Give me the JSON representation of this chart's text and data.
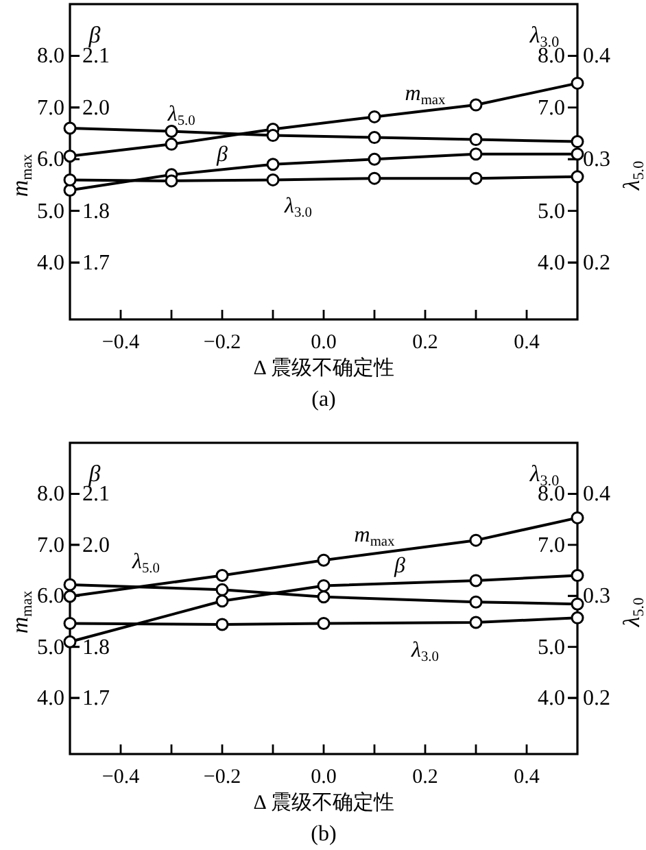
{
  "chart_data": [
    {
      "type": "line",
      "title": "(a)",
      "xlabel": "Δ 震级不确定性",
      "ylabel": "m$_{max}$",
      "y2label": "β",
      "y3label": "λ$_{5.0}$",
      "annotations": [
        "λ$_{3.0}$"
      ],
      "marker": "circle",
      "xlim": [
        -0.5,
        0.5
      ],
      "xticks": [
        {
          "value": -0.4,
          "label": "−0.4"
        },
        {
          "value": -0.3,
          "label": null
        },
        {
          "value": -0.2,
          "label": "−0.2"
        },
        {
          "value": -0.1,
          "label": null
        },
        {
          "value": 0,
          "label": "0.0"
        },
        {
          "value": 0.1,
          "label": null
        },
        {
          "value": 0.2,
          "label": "0.2"
        },
        {
          "value": 0.3,
          "label": null
        },
        {
          "value": 0.4,
          "label": "0.4"
        }
      ],
      "ylim": [
        2.9,
        9.0
      ],
      "yticks": [
        {
          "value": 4,
          "label": "4.0"
        },
        {
          "value": 5,
          "label": "5.0"
        },
        {
          "value": 6,
          "label": "6.0"
        },
        {
          "value": 7,
          "label": "7.0"
        },
        {
          "value": 8,
          "label": "8.0"
        }
      ],
      "y2lim": [
        1.59,
        2.2
      ],
      "y2ticks": [
        1.7,
        1.8,
        {
          "value": 2,
          "label": "2.0"
        },
        2.1
      ],
      "y3lim": [
        0.145,
        0.45
      ],
      "y3ticks": [
        0.2,
        0.3,
        0.4
      ],
      "series": [
        {
          "name": "m$_{max}$",
          "color": "#000000",
          "x": [
            -0.5,
            -0.3,
            -0.1,
            0.1,
            0.3,
            0.5
          ],
          "values": [
            6.06,
            6.29,
            6.58,
            6.82,
            7.05,
            7.47
          ]
        },
        {
          "name": "β",
          "color": "#000000",
          "axis": "y2",
          "x": [
            -0.5,
            -0.3,
            -0.1,
            0.1,
            0.3,
            0.5
          ],
          "values": [
            1.84,
            1.87,
            1.89,
            1.9,
            1.91,
            1.91
          ]
        },
        {
          "name": "λ$_{3.0}$",
          "color": "#000000",
          "x": [
            -0.5,
            -0.3,
            -0.1,
            0.1,
            0.3,
            0.5
          ],
          "values": [
            5.6,
            5.58,
            5.6,
            5.63,
            5.63,
            5.66
          ]
        },
        {
          "name": "λ$_{5.0}$",
          "color": "#000000",
          "axis": "y3",
          "x": [
            -0.5,
            -0.3,
            -0.1,
            0.1,
            0.3,
            0.5
          ],
          "values": [
            0.33,
            0.327,
            0.323,
            0.321,
            0.319,
            0.317
          ]
        }
      ]
    },
    {
      "type": "line",
      "title": "(b)",
      "xlabel": "Δ 震级不确定性",
      "ylabel": "m$_{max}$",
      "y2label": "β",
      "y3label": "λ$_{5.0}$",
      "annotations": [
        "λ$_{3.0}$"
      ],
      "marker": "circle",
      "xlim": [
        -0.5,
        0.5
      ],
      "xticks": [
        {
          "value": -0.4,
          "label": "−0.4"
        },
        {
          "value": -0.3,
          "label": null
        },
        {
          "value": -0.2,
          "label": "−0.2"
        },
        {
          "value": -0.1,
          "label": null
        },
        {
          "value": 0,
          "label": "0.0"
        },
        {
          "value": 0.1,
          "label": null
        },
        {
          "value": 0.2,
          "label": "0.2"
        },
        {
          "value": 0.3,
          "label": null
        },
        {
          "value": 0.4,
          "label": "0.4"
        }
      ],
      "ylim": [
        2.9,
        9.0
      ],
      "yticks": [
        {
          "value": 4,
          "label": "4.0"
        },
        {
          "value": 5,
          "label": "5.0"
        },
        {
          "value": 6,
          "label": "6.0"
        },
        {
          "value": 7,
          "label": "7.0"
        },
        {
          "value": 8,
          "label": "8.0"
        }
      ],
      "y2lim": [
        1.59,
        2.2
      ],
      "y2ticks": [
        1.7,
        1.8,
        {
          "value": 2,
          "label": "2.0"
        },
        2.1
      ],
      "y3lim": [
        0.145,
        0.45
      ],
      "y3ticks": [
        0.2,
        0.3,
        0.4
      ],
      "series": [
        {
          "name": "m$_{max}$",
          "color": "#000000",
          "x": [
            -0.5,
            -0.2,
            0,
            0.3,
            0.5
          ],
          "values": [
            5.99,
            6.4,
            6.7,
            7.09,
            7.53
          ]
        },
        {
          "name": "β",
          "color": "#000000",
          "axis": "y2",
          "x": [
            -0.5,
            -0.2,
            0,
            0.3,
            0.5
          ],
          "values": [
            1.81,
            1.89,
            1.92,
            1.93,
            1.94
          ]
        },
        {
          "name": "λ$_{3.0}$",
          "color": "#000000",
          "x": [
            -0.5,
            -0.2,
            0,
            0.3,
            0.5
          ],
          "values": [
            5.46,
            5.44,
            5.46,
            5.48,
            5.57
          ]
        },
        {
          "name": "λ$_{5.0}$",
          "color": "#000000",
          "axis": "y3",
          "x": [
            -0.5,
            -0.2,
            0,
            0.3,
            0.5
          ],
          "values": [
            0.311,
            0.306,
            0.299,
            0.294,
            0.292
          ]
        }
      ]
    }
  ]
}
